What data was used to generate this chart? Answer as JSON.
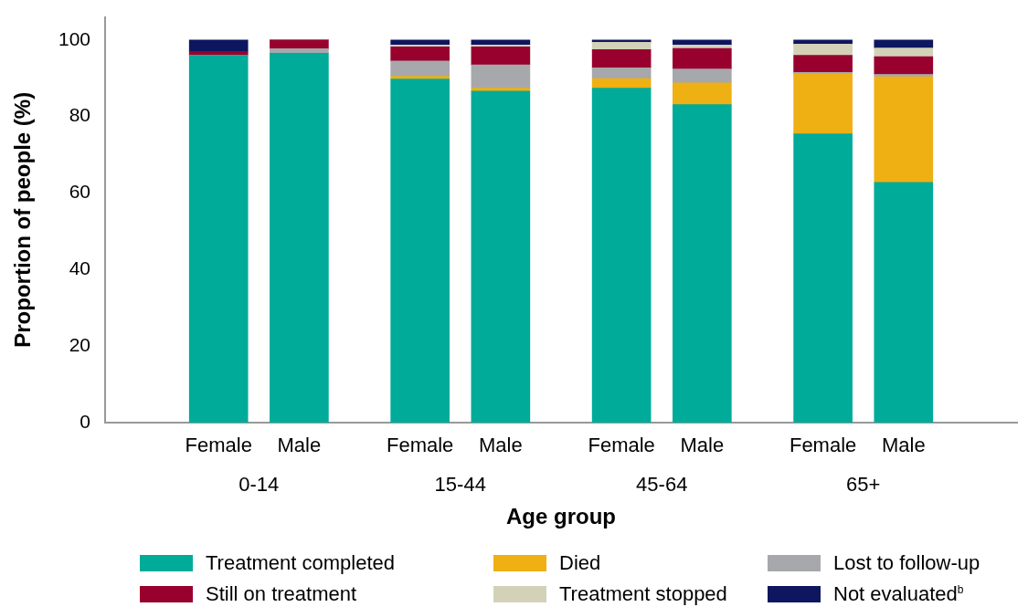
{
  "chart_data": {
    "type": "bar",
    "stacked": true,
    "xlabel": "Age group",
    "ylabel": "Proportion of people (%)",
    "categories": [
      "Female",
      "Male",
      "Female",
      "Male",
      "Female",
      "Male",
      "Female",
      "Male"
    ],
    "annotations": [
      "0-14",
      "15-44",
      "45-64",
      "65+"
    ],
    "ylim": [
      0,
      106
    ],
    "yticks": [
      0,
      20,
      40,
      60,
      80,
      100
    ],
    "grid": false,
    "legend": "bottom",
    "series": [
      {
        "name": "Treatment completed",
        "color": "#00ab9a",
        "values": [
          96.0,
          96.5,
          89.8,
          86.6,
          87.4,
          83.1,
          75.5,
          62.8
        ]
      },
      {
        "name": "Died",
        "color": "#eeb013",
        "values": [
          0,
          0,
          0.7,
          0.8,
          2.5,
          5.7,
          15.7,
          27.6
        ]
      },
      {
        "name": "Lost to follow-up",
        "color": "#a7a8ab",
        "values": [
          0,
          1.2,
          4.0,
          6.1,
          2.8,
          3.6,
          0.3,
          0.6
        ]
      },
      {
        "name": "Still on treatment",
        "color": "#98002e",
        "values": [
          1.0,
          2.3,
          3.7,
          4.7,
          4.8,
          5.4,
          4.5,
          4.6
        ]
      },
      {
        "name": "Treatment stopped",
        "color": "#d3d2b8",
        "values": [
          0,
          0,
          0.5,
          0.5,
          1.9,
          0.9,
          2.9,
          2.3
        ]
      },
      {
        "name": "Not evaluated$^{b}$",
        "color": "#0e1660",
        "values": [
          3.0,
          0,
          1.3,
          1.3,
          0.6,
          1.3,
          1.1,
          2.1
        ]
      }
    ]
  }
}
